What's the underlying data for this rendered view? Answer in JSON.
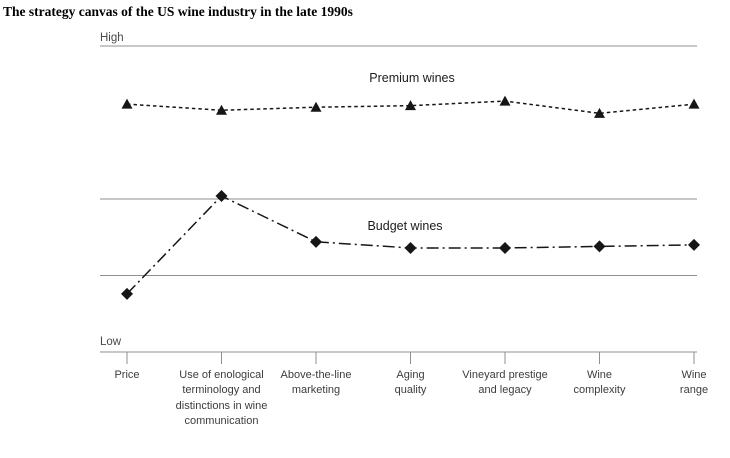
{
  "title": "The strategy canvas of the US wine industry in the late 1990s",
  "chart_data": {
    "type": "line",
    "title": "The strategy canvas of the US wine industry in the late 1990s",
    "xlabel": "",
    "ylabel": "",
    "ylim": [
      0,
      10
    ],
    "y_axis_labels": {
      "high": "High",
      "low": "Low"
    },
    "gridline_values": [
      10,
      5,
      2.5
    ],
    "grid": true,
    "legend_position": "inline-labels",
    "categories": [
      "Price",
      "Use of enological terminology and distinctions in wine communication",
      "Above-the-line marketing",
      "Aging quality",
      "Vineyard prestige and legacy",
      "Wine complexity",
      "Wine range"
    ],
    "category_label_lines": [
      [
        "Price"
      ],
      [
        "Use of enological",
        "terminology and",
        "distinctions in wine",
        "communication"
      ],
      [
        "Above-the-line",
        "marketing"
      ],
      [
        "Aging",
        "quality"
      ],
      [
        "Vineyard prestige",
        "and legacy"
      ],
      [
        "Wine",
        "complexity"
      ],
      [
        "Wine",
        "range"
      ]
    ],
    "series": [
      {
        "name": "Premium wines",
        "marker": "triangle",
        "line_style": "dashed",
        "values": [
          8.1,
          7.9,
          8.0,
          8.05,
          8.2,
          7.8,
          8.1
        ]
      },
      {
        "name": "Budget wines",
        "marker": "diamond",
        "line_style": "dash-dot",
        "values": [
          1.9,
          5.1,
          3.6,
          3.4,
          3.4,
          3.45,
          3.5
        ]
      }
    ],
    "colors": {
      "line": "#161616",
      "grid": "#8f8f8f",
      "text": "#3d3d3d"
    }
  }
}
